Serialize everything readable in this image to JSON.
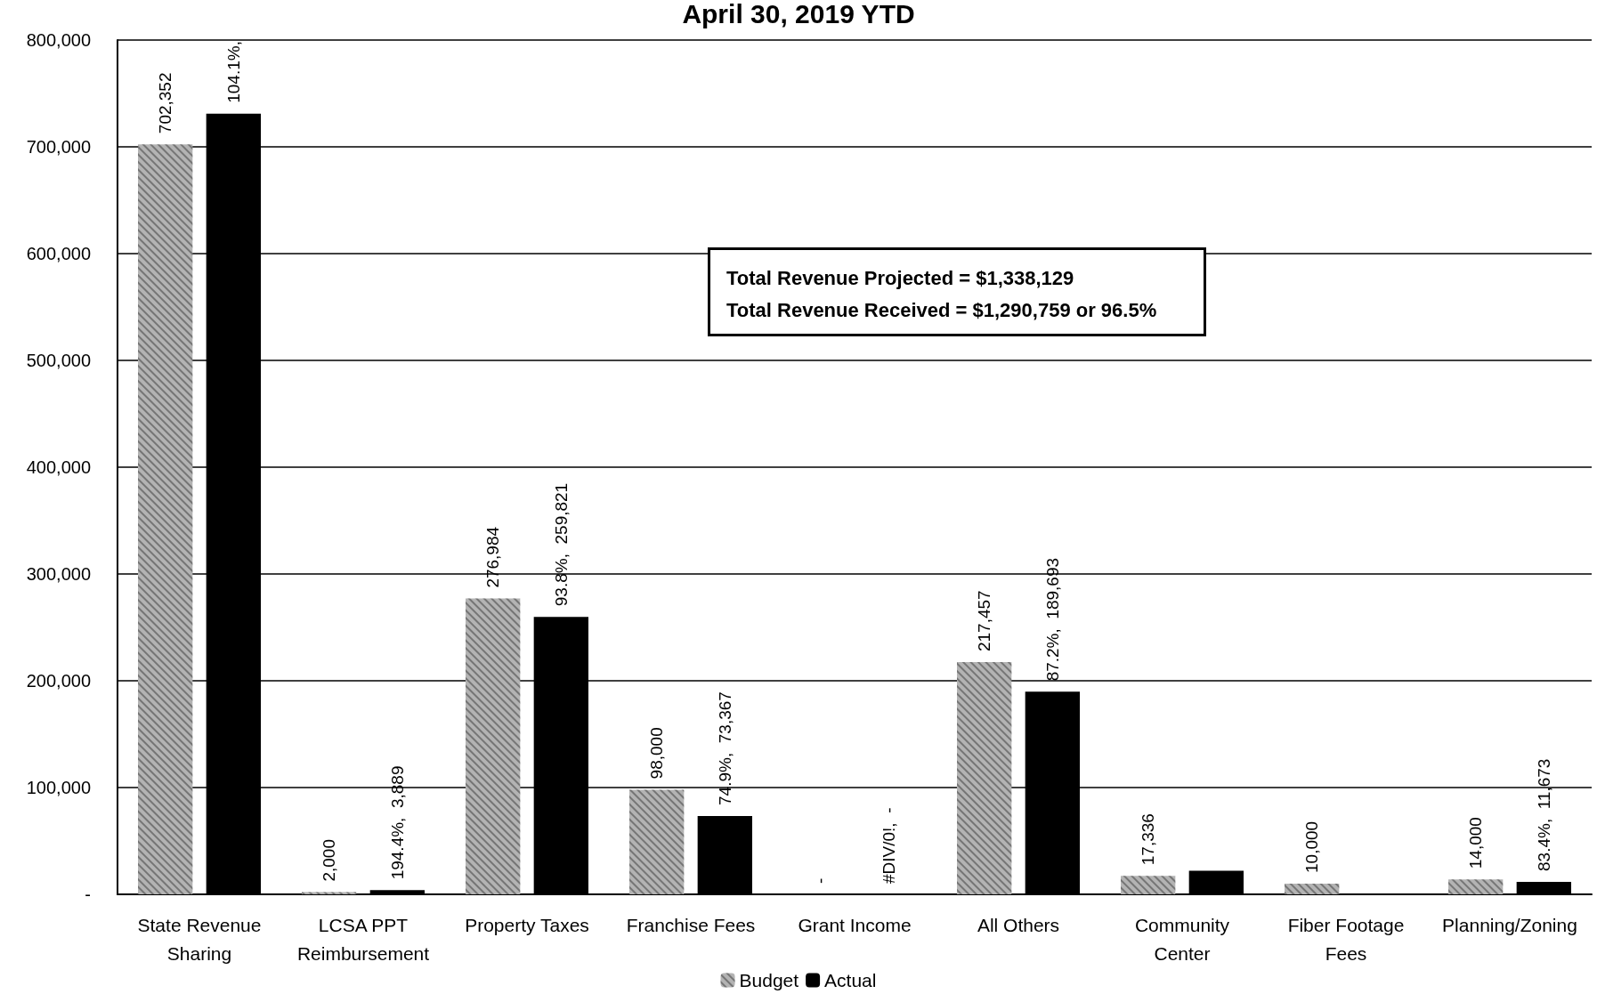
{
  "chart_data": {
    "type": "bar",
    "title": "April 30, 2019 YTD",
    "categories": [
      "State Revenue\nSharing",
      "LCSA PPT\nReimbursement",
      "Property Taxes",
      "Franchise Fees",
      "Grant Income",
      "All Others",
      "Community\nCenter",
      "Fiber Footage\nFees",
      "Planning/Zoning"
    ],
    "series": [
      {
        "name": "Budget",
        "color": "#b3b3b3",
        "values": [
          702352,
          2000,
          276984,
          98000,
          0,
          217457,
          17336,
          10000,
          14000
        ],
        "value_labels": [
          "702,352",
          "2,000",
          "276,984",
          "98,000",
          null,
          "217,457",
          "17,336",
          "10,000",
          "14,000"
        ]
      },
      {
        "name": "Actual",
        "color": "#000000",
        "values": [
          731000,
          3889,
          259821,
          73367,
          0,
          189693,
          22000,
          0,
          11673
        ],
        "value_labels": [
          null,
          "194.4%,  3,889",
          "93.8%,  259,821",
          "74.9%,  73,367",
          null,
          "87.2%,  189,693",
          null,
          null,
          "83.4%,  11,673"
        ]
      }
    ],
    "ylim": [
      0,
      800000
    ],
    "yticks": [
      {
        "value": 0,
        "label": "-"
      },
      {
        "value": 100000,
        "label": "100,000"
      },
      {
        "value": 200000,
        "label": "200,000"
      },
      {
        "value": 300000,
        "label": "300,000"
      },
      {
        "value": 400000,
        "label": "400,000"
      },
      {
        "value": 500000,
        "label": "500,000"
      },
      {
        "value": 600000,
        "label": "600,000"
      },
      {
        "value": 700000,
        "label": "700,000"
      },
      {
        "value": 800000,
        "label": "800,000"
      }
    ],
    "grid": "y",
    "legend": "bottom",
    "annotations": [
      "Total Revenue Projected = $1,338,129\nTotal Revenue Received = $1,290,759 or 96.5%",
      "104.1%,",
      {
        "text": "-",
        "x": "Grant Income",
        "y": 0
      },
      {
        "text": "#DIV/0!,  -",
        "x": "Grant Income",
        "y": 0
      }
    ]
  }
}
